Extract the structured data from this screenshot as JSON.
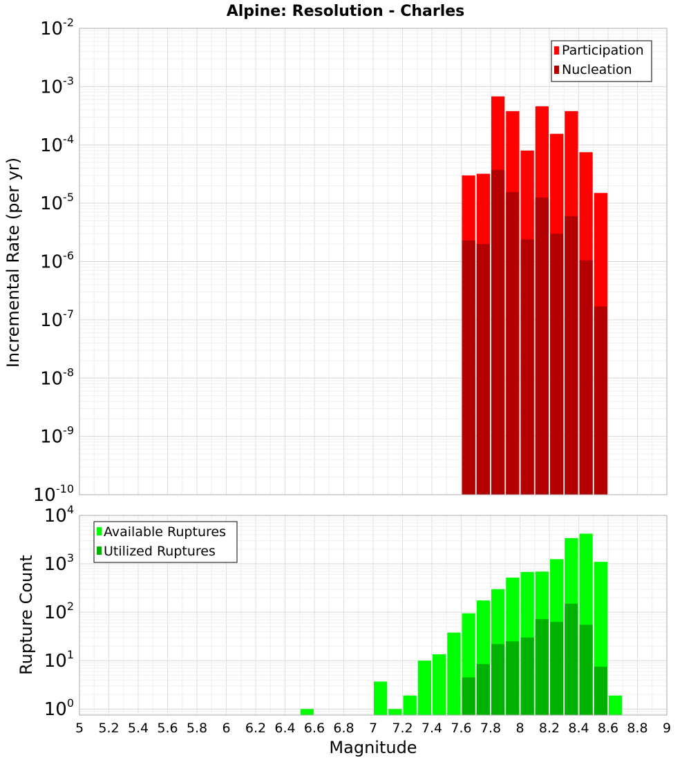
{
  "chart_data": [
    {
      "type": "bar",
      "title": "Alpine: Resolution - Charles",
      "xlabel": "Magnitude",
      "ylabel": "Incremental Rate (per yr)",
      "x_scale": "linear",
      "xlim": [
        5,
        9
      ],
      "x_ticks": [
        "5",
        "5.2",
        "5.4",
        "5.6",
        "5.8",
        "6",
        "6.2",
        "6.4",
        "6.6",
        "6.8",
        "7",
        "7.2",
        "7.4",
        "7.6",
        "7.8",
        "8",
        "8.2",
        "8.4",
        "8.6",
        "8.8",
        "9"
      ],
      "y_scale": "log",
      "ylim": [
        1e-10,
        0.01
      ],
      "y_tick_exponents": [
        -10,
        -9,
        -8,
        -7,
        -6,
        -5,
        -4,
        -3,
        -2
      ],
      "grid": true,
      "legend_position": "top-right",
      "bar_width": 0.1,
      "x": [
        7.65,
        7.75,
        7.85,
        7.95,
        8.05,
        8.15,
        8.25,
        8.35,
        8.45,
        8.55
      ],
      "series": [
        {
          "name": "Participation",
          "color": "#ff0000",
          "values": [
            3e-05,
            3.2e-05,
            0.00068,
            0.00038,
            8e-05,
            0.00046,
            0.000155,
            0.00038,
            7.5e-05,
            1.5e-05
          ]
        },
        {
          "name": "Nucleation",
          "color": "#b20000",
          "values": [
            2.3e-06,
            2e-06,
            3.7e-05,
            1.55e-05,
            2.4e-06,
            1.25e-05,
            3e-06,
            6e-06,
            1.05e-06,
            1.7e-07
          ]
        }
      ]
    },
    {
      "type": "bar",
      "title": "",
      "xlabel": "Magnitude",
      "ylabel": "Rupture Count",
      "x_scale": "linear",
      "xlim": [
        5,
        9
      ],
      "y_scale": "log",
      "ylim": [
        0.75,
        10000
      ],
      "y_tick_exponents": [
        0,
        1,
        2,
        3,
        4
      ],
      "grid": true,
      "legend_position": "top-left",
      "bar_width": 0.1,
      "x": [
        6.55,
        7.05,
        7.15,
        7.25,
        7.35,
        7.45,
        7.55,
        7.65,
        7.75,
        7.85,
        7.95,
        8.05,
        8.15,
        8.25,
        8.35,
        8.45,
        8.55,
        8.65
      ],
      "series": [
        {
          "name": "Available Ruptures",
          "color": "#00ff00",
          "values": [
            1,
            3.7,
            1,
            1.9,
            10,
            13.5,
            38,
            95,
            175,
            300,
            520,
            680,
            690,
            1250,
            3400,
            4200,
            1100,
            1.9
          ]
        },
        {
          "name": "Utilized Ruptures",
          "color": "#00b200",
          "values": [
            null,
            null,
            null,
            null,
            null,
            null,
            null,
            4.5,
            8.5,
            22,
            25,
            30,
            72,
            63,
            150,
            55,
            7.5,
            null
          ]
        }
      ]
    }
  ]
}
